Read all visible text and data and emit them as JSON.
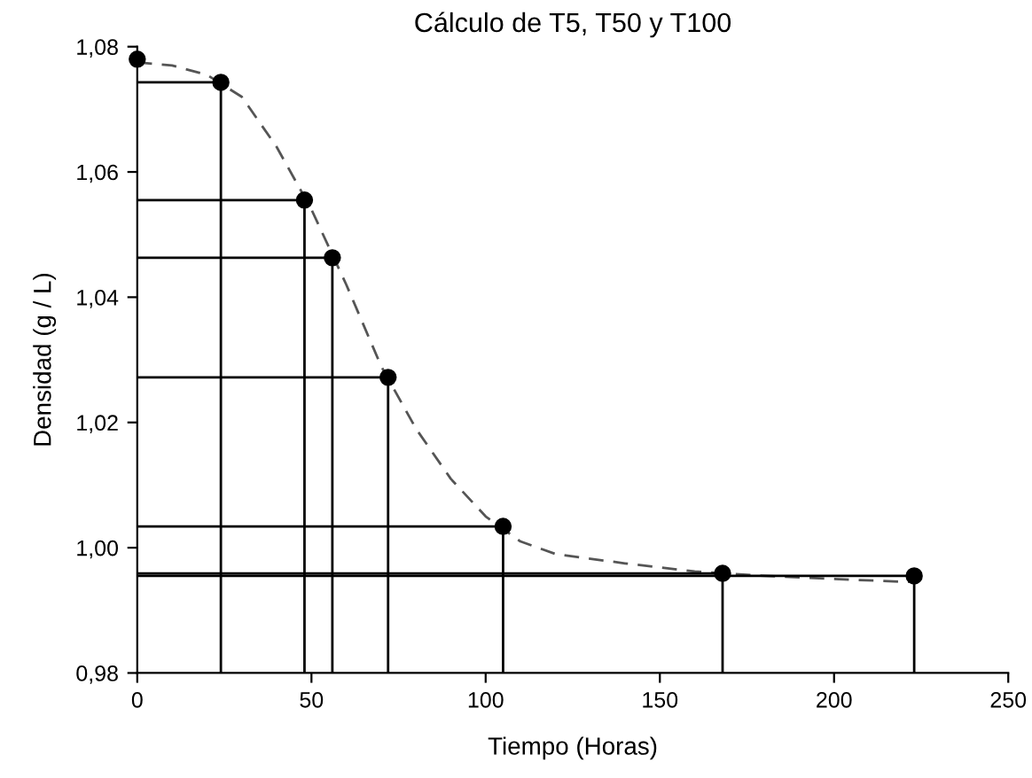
{
  "chart_data": {
    "type": "scatter",
    "title": "Cálculo de T5, T50 y T100",
    "xlabel": "Tiempo (Horas)",
    "ylabel": "Densidad (g / L)",
    "series": [
      {
        "color": "#000000",
        "marker": "circle",
        "x": [
          0,
          24,
          48,
          56,
          72,
          105,
          168,
          223
        ],
        "values": [
          1.078,
          1.0743,
          1.0555,
          1.0463,
          1.0272,
          1.0034,
          0.9959,
          0.9955
        ]
      },
      {
        "type": "line",
        "color": "#555555",
        "line_style": "dashed",
        "marker": "none",
        "x": [
          0,
          10,
          20,
          30,
          40,
          50,
          60,
          70,
          80,
          90,
          100,
          110,
          120,
          140,
          160,
          180,
          200,
          223
        ],
        "values": [
          1.0775,
          1.077,
          1.0755,
          1.072,
          1.064,
          1.054,
          1.042,
          1.029,
          1.019,
          1.011,
          1.005,
          1.001,
          0.999,
          0.9975,
          0.9962,
          0.9955,
          0.995,
          0.9945
        ]
      },
      {
        "type": "line",
        "color": "#000000",
        "line_style": "solid",
        "marker": "none",
        "x": [
          0,
          24,
          24
        ],
        "values": [
          1.0743,
          1.0743,
          0.98
        ]
      },
      {
        "type": "line",
        "color": "#000000",
        "line_style": "solid",
        "marker": "none",
        "x": [
          0,
          48,
          48
        ],
        "values": [
          1.0555,
          1.0555,
          0.98
        ]
      },
      {
        "type": "line",
        "color": "#000000",
        "line_style": "solid",
        "marker": "none",
        "x": [
          0,
          56,
          56
        ],
        "values": [
          1.0463,
          1.0463,
          0.98
        ]
      },
      {
        "type": "line",
        "color": "#000000",
        "line_style": "solid",
        "marker": "none",
        "x": [
          0,
          72,
          72
        ],
        "values": [
          1.0272,
          1.0272,
          0.98
        ]
      },
      {
        "type": "line",
        "color": "#000000",
        "line_style": "solid",
        "marker": "none",
        "x": [
          0,
          105,
          105
        ],
        "values": [
          1.0034,
          1.0034,
          0.98
        ]
      },
      {
        "type": "line",
        "color": "#000000",
        "line_style": "solid",
        "marker": "none",
        "x": [
          0,
          168,
          168
        ],
        "values": [
          0.9959,
          0.9959,
          0.98
        ]
      },
      {
        "type": "line",
        "color": "#000000",
        "line_style": "solid",
        "marker": "none",
        "x": [
          0,
          223,
          223
        ],
        "values": [
          0.9955,
          0.9955,
          0.98
        ]
      }
    ],
    "xlim": [
      0,
      250
    ],
    "xticks": [
      0,
      50,
      100,
      150,
      200,
      250
    ],
    "ylim": [
      0.98,
      1.08
    ],
    "yticks": [
      {
        "value": 0.98,
        "label": "0,98"
      },
      {
        "value": 1.0,
        "label": "1,00"
      },
      {
        "value": 1.02,
        "label": "1,02"
      },
      {
        "value": 1.04,
        "label": "1,04"
      },
      {
        "value": 1.06,
        "label": "1,06"
      },
      {
        "value": 1.08,
        "label": "1,08"
      }
    ],
    "grid": false
  }
}
